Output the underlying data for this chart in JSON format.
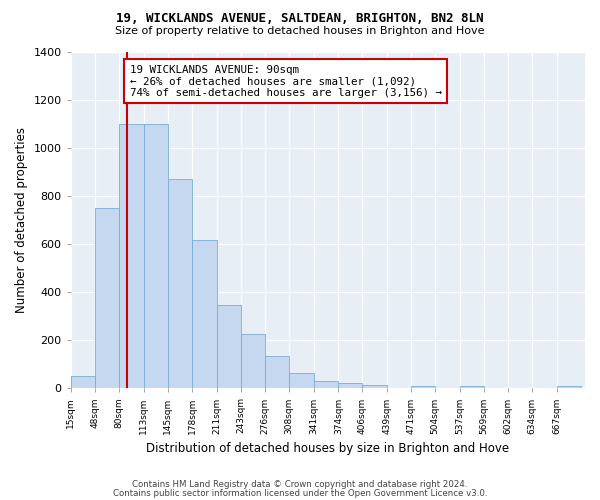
{
  "title1": "19, WICKLANDS AVENUE, SALTDEAN, BRIGHTON, BN2 8LN",
  "title2": "Size of property relative to detached houses in Brighton and Hove",
  "xlabel": "Distribution of detached houses by size in Brighton and Hove",
  "ylabel": "Number of detached properties",
  "footnote1": "Contains HM Land Registry data © Crown copyright and database right 2024.",
  "footnote2": "Contains public sector information licensed under the Open Government Licence v3.0.",
  "bar_labels": [
    "15sqm",
    "48sqm",
    "80sqm",
    "113sqm",
    "145sqm",
    "178sqm",
    "211sqm",
    "243sqm",
    "276sqm",
    "308sqm",
    "341sqm",
    "374sqm",
    "406sqm",
    "439sqm",
    "471sqm",
    "504sqm",
    "537sqm",
    "569sqm",
    "602sqm",
    "634sqm",
    "667sqm"
  ],
  "hist_values": [
    50,
    750,
    1100,
    1100,
    870,
    615,
    345,
    225,
    135,
    65,
    30,
    20,
    12,
    0,
    10,
    0,
    10,
    0,
    0,
    0,
    10
  ],
  "bar_edges": [
    15,
    48,
    80,
    113,
    145,
    178,
    211,
    243,
    276,
    308,
    341,
    374,
    406,
    439,
    471,
    504,
    537,
    569,
    602,
    634,
    667,
    700
  ],
  "property_line_x": 90,
  "annotation_text": "19 WICKLANDS AVENUE: 90sqm\n← 26% of detached houses are smaller (1,092)\n74% of semi-detached houses are larger (3,156) →",
  "bar_color": "#c5d8ef",
  "bar_edgecolor": "#7aadd4",
  "line_color": "#cc0000",
  "annotation_boxcolor": "#ffffff",
  "annotation_edgecolor": "#cc0000",
  "ylim": [
    0,
    1400
  ],
  "yticks": [
    0,
    200,
    400,
    600,
    800,
    1000,
    1200,
    1400
  ],
  "bg_color": "#e8eef6"
}
